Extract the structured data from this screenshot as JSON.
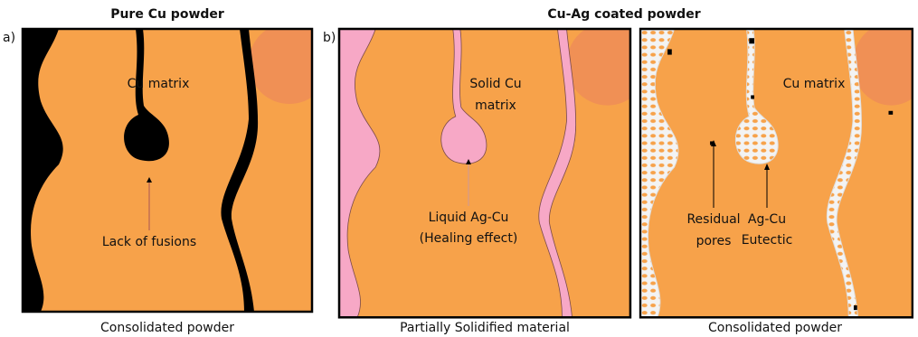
{
  "titles": {
    "left": "Pure Cu powder",
    "right": "Cu-Ag coated powder"
  },
  "panels": [
    {
      "label": "a)",
      "caption": "Consolidated powder",
      "annotations": [
        {
          "lines": [
            "Cu matrix"
          ]
        },
        {
          "lines": [
            "Lack of fusions"
          ]
        }
      ]
    },
    {
      "label": "b)",
      "caption": "Partially Solidified material",
      "annotations": [
        {
          "lines": [
            "Solid Cu",
            "matrix"
          ]
        },
        {
          "lines": [
            "Liquid Ag-Cu",
            "(Healing effect)"
          ]
        }
      ]
    },
    {
      "caption": "Consolidated powder",
      "annotations": [
        {
          "lines": [
            "Cu matrix"
          ]
        },
        {
          "lines": [
            "Residual",
            "pores"
          ]
        },
        {
          "lines": [
            "Ag-Cu",
            "Eutectic"
          ]
        }
      ]
    }
  ]
}
